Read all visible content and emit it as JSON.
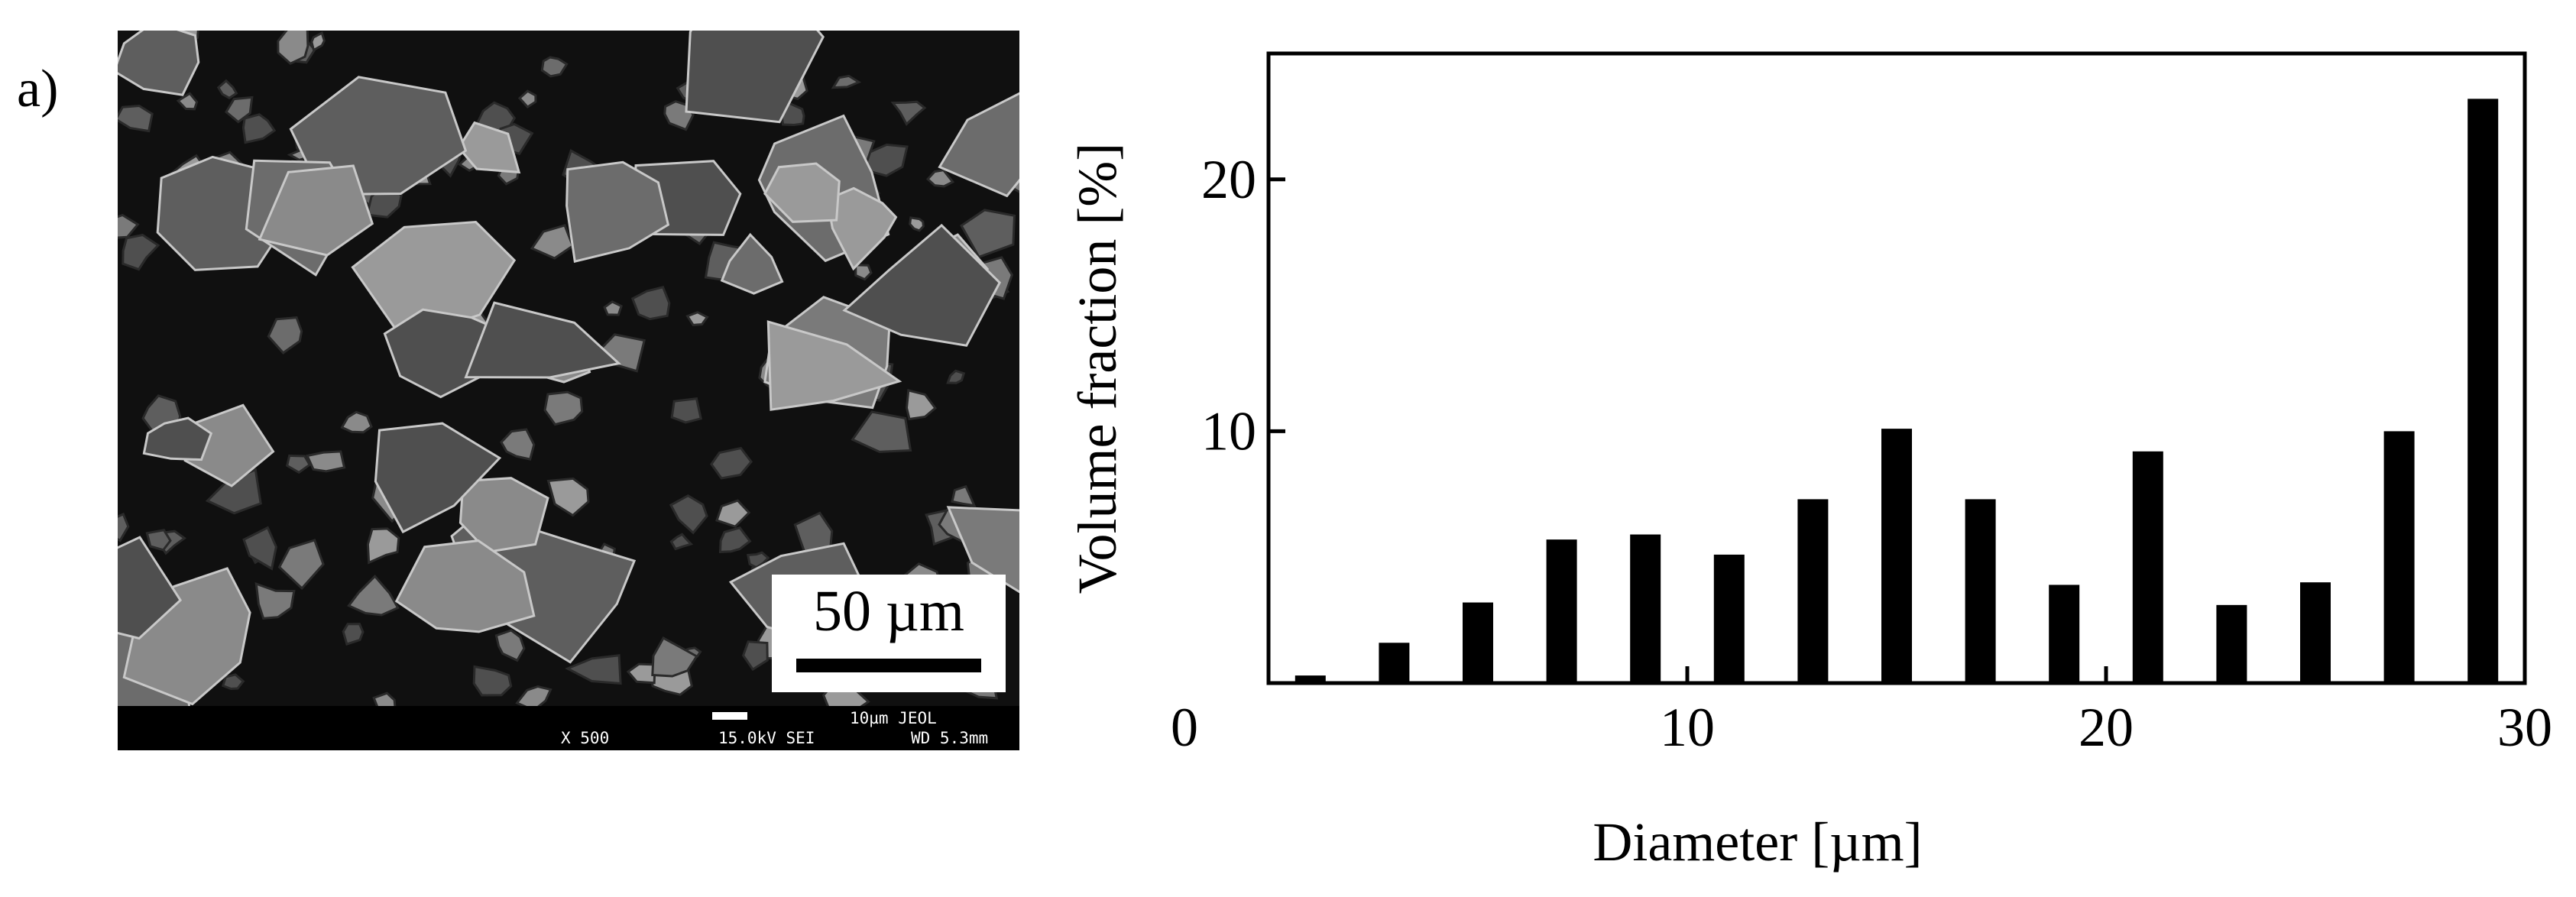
{
  "panel_label": "a)",
  "micrograph": {
    "scale_label": "50 µm",
    "info": {
      "magnification": "X 500",
      "voltage_detector": "15.0kV SEI",
      "scale_unit": "10µm  JEOL",
      "working_distance": "WD 5.3mm"
    },
    "colors": {
      "background": "#101010",
      "particle": "#7a7a7a",
      "highlight": "#c8c8c8"
    }
  },
  "chart_data": {
    "type": "bar",
    "title": "",
    "xlabel": "Diameter [µm]",
    "ylabel": "Volume fraction [%]",
    "xlim": [
      0,
      30
    ],
    "ylim": [
      0,
      25
    ],
    "x_ticks": [
      0,
      10,
      20,
      30
    ],
    "y_ticks": [
      10,
      20
    ],
    "grid": false,
    "bar_color": "#000000",
    "x": [
      1,
      3,
      5,
      7,
      9,
      11,
      13,
      15,
      17,
      19,
      21,
      23,
      25,
      27,
      29
    ],
    "values": [
      0.3,
      1.6,
      3.2,
      5.7,
      5.9,
      5.1,
      7.3,
      10.1,
      7.3,
      3.9,
      9.2,
      3.1,
      4.0,
      10.0,
      23.2
    ]
  }
}
